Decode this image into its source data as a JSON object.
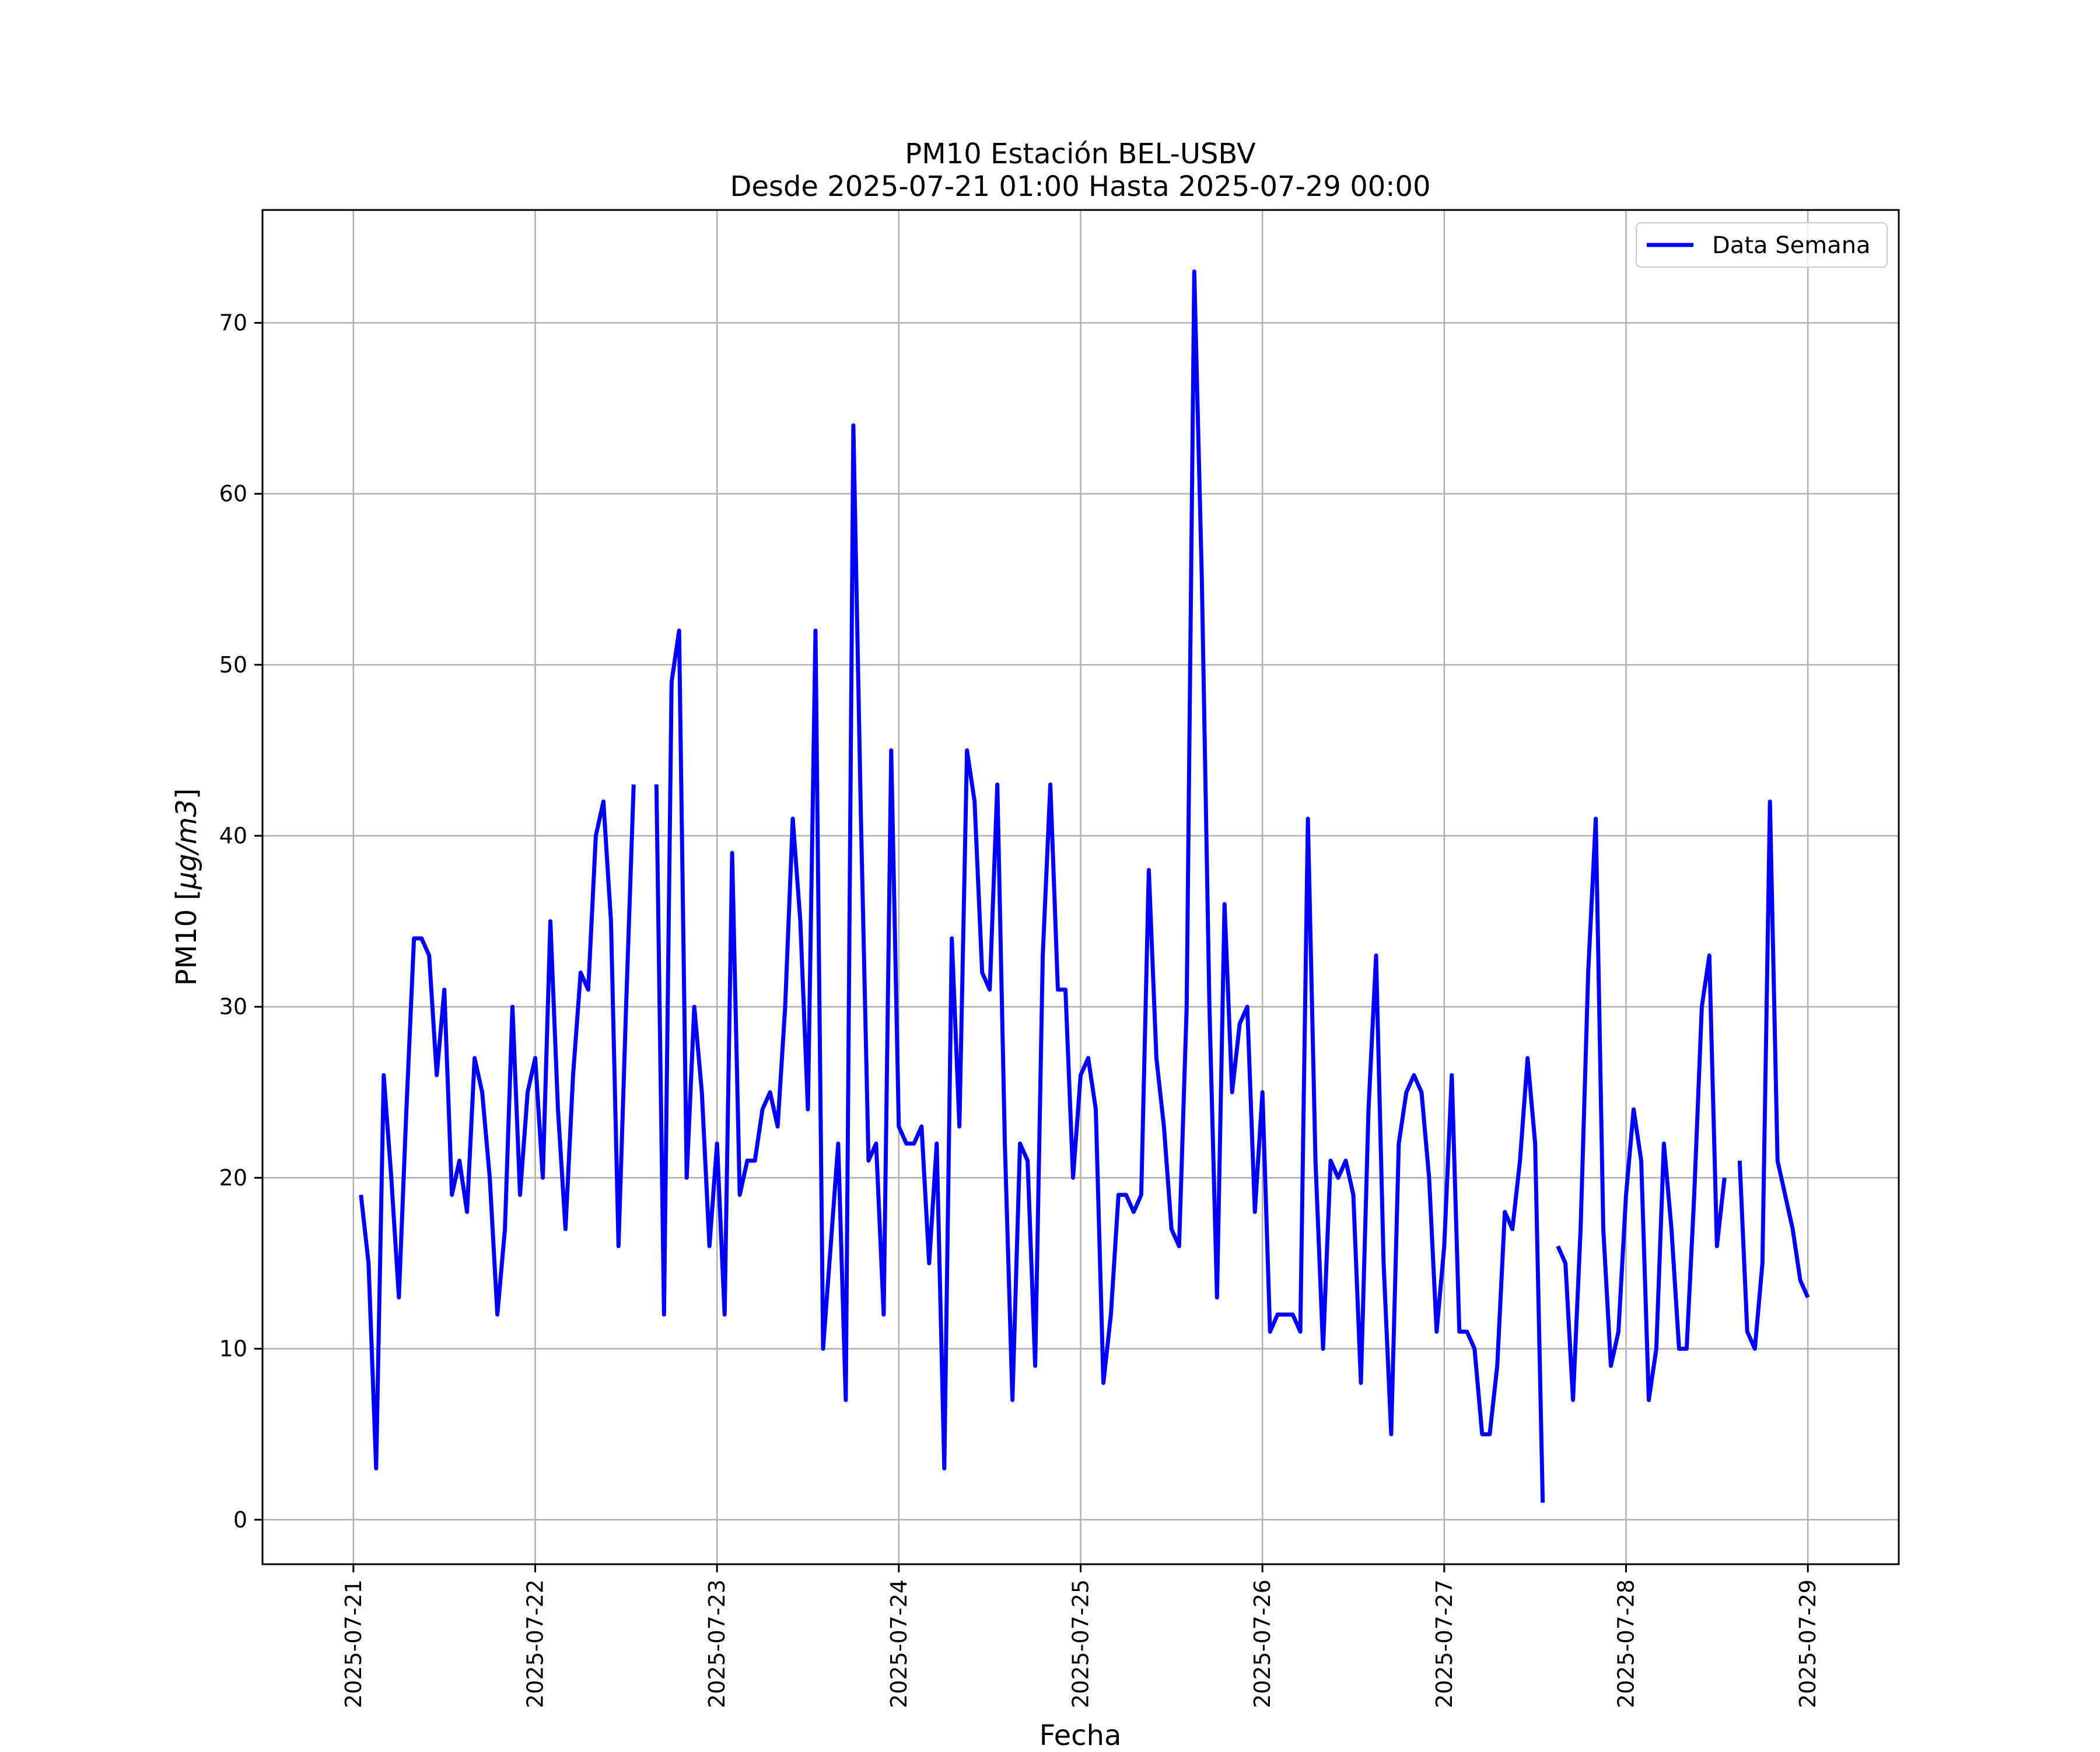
{
  "chart_data": {
    "type": "line",
    "title": "PM10 Estación BEL-USBV",
    "subtitle": "Desde 2025-07-21 01:00 Hasta 2025-07-29 00:00",
    "xlabel": "Fecha",
    "ylabel_main": "PM10 [",
    "ylabel_unit": "μg/m3",
    "ylabel_end": "]",
    "x_ticks": [
      "2025-07-21",
      "2025-07-22",
      "2025-07-23",
      "2025-07-24",
      "2025-07-25",
      "2025-07-26",
      "2025-07-27",
      "2025-07-28",
      "2025-07-29"
    ],
    "y_ticks": [
      0,
      10,
      20,
      30,
      40,
      50,
      60,
      70
    ],
    "xlim": [
      "2025-07-20 12:00",
      "2025-07-29 12:00"
    ],
    "ylim": [
      -2.6,
      76.6
    ],
    "grid": true,
    "legend_position": "top-right",
    "colors": {
      "series": "#0000ff",
      "grid": "#b0b0b0",
      "axes": "#000000"
    },
    "series": [
      {
        "name": "Data Semana",
        "x_start": "2025-07-21 01:00",
        "x_step_hours": 1,
        "values": [
          19,
          15,
          3,
          26,
          20,
          13,
          24,
          34,
          34,
          33,
          26,
          31,
          19,
          21,
          18,
          27,
          25,
          20,
          12,
          17,
          30,
          19,
          25,
          27,
          20,
          35,
          24,
          17,
          26,
          32,
          31,
          40,
          42,
          35,
          16,
          30,
          43,
          null,
          null,
          43,
          12,
          49,
          52,
          20,
          30,
          25,
          16,
          22,
          12,
          39,
          19,
          21,
          21,
          24,
          25,
          23,
          30,
          41,
          35,
          24,
          52,
          10,
          16,
          22,
          7,
          64,
          41,
          21,
          22,
          12,
          45,
          23,
          22,
          22,
          23,
          15,
          22,
          3,
          34,
          23,
          45,
          42,
          32,
          31,
          43,
          22,
          7,
          22,
          21,
          9,
          33,
          43,
          31,
          31,
          20,
          26,
          27,
          24,
          8,
          12,
          19,
          19,
          18,
          19,
          38,
          27,
          23,
          17,
          16,
          30,
          73,
          55,
          30,
          13,
          36,
          25,
          29,
          30,
          18,
          25,
          11,
          12,
          12,
          12,
          11,
          41,
          21,
          10,
          21,
          20,
          21,
          19,
          8,
          24,
          33,
          15,
          5,
          22,
          25,
          26,
          25,
          20,
          11,
          16,
          26,
          11,
          11,
          10,
          5,
          5,
          9,
          18,
          17,
          21,
          27,
          22,
          1,
          null,
          16,
          15,
          7,
          17,
          32,
          41,
          17,
          9,
          11,
          19,
          24,
          21,
          7,
          10,
          22,
          17,
          10,
          10,
          19,
          30,
          33,
          16,
          20,
          null,
          21,
          11,
          10,
          15,
          42,
          21,
          19,
          17,
          14,
          13
        ]
      }
    ]
  }
}
